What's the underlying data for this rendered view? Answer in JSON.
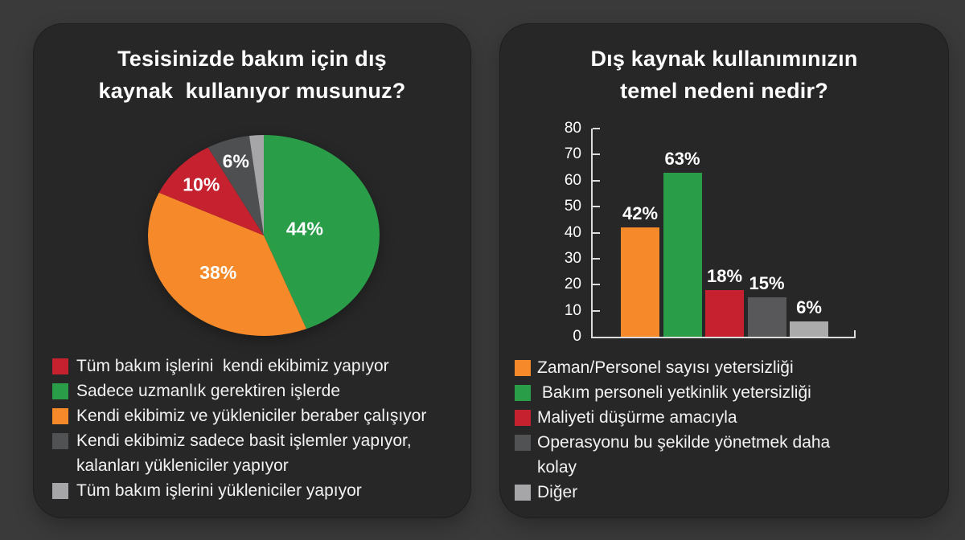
{
  "window": {
    "background": "#3A3A3A",
    "panel_background": "#272727"
  },
  "palette": {
    "green": "#2A9D49",
    "orange": "#F6892A",
    "red": "#C5212F",
    "dark_gray": "#515254",
    "light_gray": "#A6A6A8",
    "axis": "#DCDCDC",
    "text": "#FFFFFF"
  },
  "pie_panel": {
    "title_line1": "Tesisinizde bakım için dış",
    "title_line2": "kaynak  kullanıyor musunuz?",
    "legend": [
      {
        "color_key": "red",
        "label": "Tüm bakım işlerini  kendi ekibimiz yapıyor"
      },
      {
        "color_key": "green",
        "label": "Sadece uzmanlık gerektiren işlerde"
      },
      {
        "color_key": "orange",
        "label": "Kendi ekibimiz ve yükleniciler beraber çalışıyor"
      },
      {
        "color_key": "dark_gray",
        "label": "Kendi ekibimiz sadece basit işlemler yapıyor,\nkalanları yükleniciler yapıyor"
      },
      {
        "color_key": "light_gray",
        "label": "Tüm bakım işlerini yükleniciler yapıyor"
      }
    ]
  },
  "bar_panel": {
    "title_line1": "Dış kaynak kullanımınızın",
    "title_line2": "temel nedeni nedir?",
    "legend": [
      {
        "color_key": "orange",
        "label": "Zaman/Personel sayısı yetersizliği"
      },
      {
        "color_key": "green",
        "label": " Bakım personeli yetkinlik yetersizliği"
      },
      {
        "color_key": "red",
        "label": "Maliyeti düşürme amacıyla"
      },
      {
        "color_key": "dark_gray",
        "label": "Operasyonu bu şekilde yönetmek daha\nkolay"
      },
      {
        "color_key": "light_gray",
        "label": "Diğer"
      }
    ]
  },
  "chart_data": [
    {
      "type": "pie",
      "title": "Tesisinizde bakım için dış kaynak kullanıyor musunuz?",
      "direction": "clockwise",
      "start_angle_deg": 0,
      "legend_position": "bottom",
      "slices": [
        {
          "label": "Sadece uzmanlık gerektiren işlerde",
          "value": 44,
          "display": "44%",
          "color": "#2A9D49",
          "label_r": 0.36
        },
        {
          "label": "Kendi ekibimiz ve yükleniciler beraber çalışıyor",
          "value": 38,
          "display": "38%",
          "color": "#F6892A",
          "label_r": 0.54
        },
        {
          "label": "Tüm bakım işlerini kendi ekibimiz yapıyor",
          "value": 10,
          "display": "10%",
          "color": "#C5212F",
          "label_r": 0.74
        },
        {
          "label": "Kendi ekibimiz sadece basit işlemler yapıyor, kalanları yükleniciler yapıyor",
          "value": 6,
          "display": "6%",
          "color": "#4E4F51",
          "label_r": 0.78
        },
        {
          "label": "Tüm bakım işlerini yükleniciler yapıyor",
          "value": 2,
          "display": "",
          "color": "#A6A6A8",
          "label_r": 0
        }
      ]
    },
    {
      "type": "bar",
      "title": "Dış kaynak kullanımınızın temel nedeni nedir?",
      "categories": [
        "Zaman/Personel sayısı yetersizliği",
        "Bakım personeli yetkinlik yetersizliği",
        "Maliyeti düşürme amacıyla",
        "Operasyonu bu şekilde yönetmek daha kolay",
        "Diğer"
      ],
      "values": [
        42,
        63,
        18,
        15,
        6
      ],
      "bar_labels": [
        "42%",
        "63%",
        "18%",
        "15%",
        "6%"
      ],
      "colors": [
        "#F6892A",
        "#2A9D49",
        "#C5212F",
        "#58585A",
        "#ABABAB"
      ],
      "xlabel": "",
      "ylabel": "",
      "ylim": [
        0,
        80
      ],
      "yticks": [
        0,
        10,
        20,
        30,
        40,
        50,
        60,
        70,
        80
      ],
      "grid": false,
      "legend_position": "bottom"
    }
  ]
}
